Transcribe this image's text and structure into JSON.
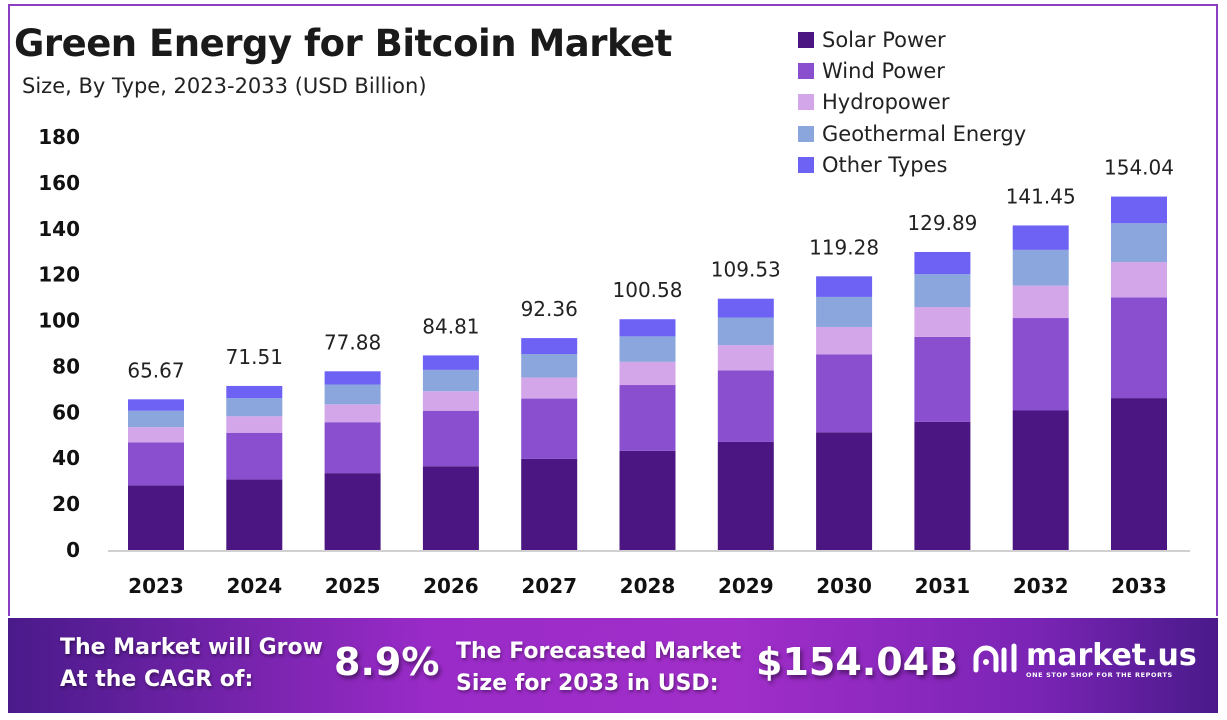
{
  "chart_data": {
    "type": "bar",
    "stacked": true,
    "title": "Green Energy for Bitcoin Market",
    "subtitle": "Size, By Type, 2023-2033 (USD Billion)",
    "categories": [
      "2023",
      "2024",
      "2025",
      "2026",
      "2027",
      "2028",
      "2029",
      "2030",
      "2031",
      "2032",
      "2033"
    ],
    "totals": [
      "65.67",
      "71.51",
      "77.88",
      "84.81",
      "92.36",
      "100.58",
      "109.53",
      "119.28",
      "129.89",
      "141.45",
      "154.04"
    ],
    "series": [
      {
        "name": "Solar Power",
        "color": "#4b1681",
        "values": [
          28.2,
          30.7,
          33.5,
          36.5,
          39.7,
          43.2,
          47.1,
          51.3,
          55.9,
          60.8,
          66.2
        ]
      },
      {
        "name": "Wind Power",
        "color": "#8a4fcf",
        "values": [
          18.7,
          20.4,
          22.2,
          24.2,
          26.3,
          28.7,
          31.2,
          34.0,
          37.0,
          40.3,
          43.9
        ]
      },
      {
        "name": "Hydropower",
        "color": "#d3a6ea",
        "values": [
          6.6,
          7.2,
          7.8,
          8.5,
          9.2,
          10.1,
          11.0,
          11.9,
          13.0,
          14.1,
          15.4
        ]
      },
      {
        "name": "Geothermal Energy",
        "color": "#8aa6dc",
        "values": [
          7.2,
          7.9,
          8.6,
          9.3,
          10.2,
          11.1,
          12.0,
          13.1,
          14.3,
          15.6,
          16.9
        ]
      },
      {
        "name": "Other Types",
        "color": "#6e62f5",
        "values": [
          4.97,
          5.31,
          5.78,
          6.31,
          6.96,
          7.48,
          8.23,
          8.98,
          9.69,
          10.65,
          11.64
        ]
      }
    ],
    "yticks": [
      "0",
      "20",
      "40",
      "60",
      "80",
      "100",
      "120",
      "140",
      "160",
      "180"
    ],
    "ylim": [
      0,
      180
    ],
    "grid": false,
    "legend": "top-right"
  },
  "footer": {
    "cagr_label_1": "The Market will Grow",
    "cagr_label_2": "At the CAGR of:",
    "cagr_value": "8.9%",
    "forecast_label_1": "The Forecasted Market",
    "forecast_label_2": "Size for 2033 in USD:",
    "forecast_value": "$154.04B",
    "logo_text": "market.us",
    "logo_tagline": "ONE STOP SHOP FOR THE REPORTS"
  }
}
